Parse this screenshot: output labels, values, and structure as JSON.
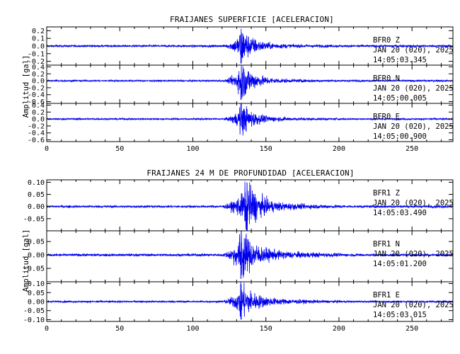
{
  "colors": {
    "trace": "#0000ee",
    "axes": "#000000",
    "background": "#ffffff"
  },
  "chart_data": [
    {
      "type": "line",
      "title": "FRAIJANES SUPERFICIE [ACELERACION]",
      "ylabel": "Amplitud [gal]",
      "xlim": [
        0,
        278
      ],
      "xticks": [
        0,
        50,
        100,
        150,
        200,
        250
      ],
      "xtick_labels": [
        "0",
        "50",
        "100",
        "150",
        "200",
        "250"
      ],
      "grid": false,
      "panels": [
        {
          "channel": "BFR0  Z",
          "date": "JAN 20 (020), 2025",
          "time": "14:05:03.345",
          "ylim": [
            -0.25,
            0.25
          ],
          "yticks": [
            -0.2,
            -0.1,
            0.0,
            0.1,
            0.2
          ],
          "ytick_labels": [
            "-0.2",
            "-0.1",
            "0.0",
            "0.1",
            "0.2"
          ],
          "envelope": {
            "noise": 0.012,
            "onset": 120,
            "peak_time": 133,
            "peak_amp": 0.23,
            "rise_end": 131,
            "decay_end": 165,
            "coda": 0.02
          }
        },
        {
          "channel": "BFR0  N",
          "date": "JAN 20 (020), 2025",
          "time": "14:05:00.005",
          "ylim": [
            -0.65,
            0.45
          ],
          "yticks": [
            -0.6,
            -0.4,
            -0.2,
            0.0,
            0.2,
            0.4
          ],
          "ytick_labels": [
            "-0.6",
            "-0.4",
            "-0.2",
            "0.0",
            "0.2",
            "0.4"
          ],
          "envelope": {
            "noise": 0.02,
            "onset": 120,
            "peak_time": 133,
            "peak_amp": 0.55,
            "rise_end": 131,
            "decay_end": 165,
            "coda": 0.04
          }
        },
        {
          "channel": "BFR0  E",
          "date": "JAN 20 (020), 2025",
          "time": "14:05:00.900",
          "ylim": [
            -0.65,
            0.45
          ],
          "yticks": [
            -0.6,
            -0.4,
            -0.2,
            0.0,
            0.2,
            0.4
          ],
          "ytick_labels": [
            "-0.6",
            "-0.4",
            "-0.2",
            "0.0",
            "0.2",
            "0.4"
          ],
          "envelope": {
            "noise": 0.02,
            "onset": 120,
            "peak_time": 133,
            "peak_amp": 0.45,
            "rise_end": 131,
            "decay_end": 165,
            "coda": 0.04
          }
        }
      ]
    },
    {
      "type": "line",
      "title": "FRAIJANES 24 M DE PROFUNDIDAD [ACELERACION]",
      "ylabel": "Amplitud [gal]",
      "xlim": [
        0,
        278
      ],
      "xticks": [
        0,
        50,
        100,
        150,
        200,
        250
      ],
      "xtick_labels": [
        "0",
        "50",
        "100",
        "150",
        "200",
        "250"
      ],
      "grid": false,
      "panels": [
        {
          "channel": "BFR1  Z",
          "date": "JAN 20 (020), 2025",
          "time": "14:05:03.490",
          "ylim": [
            -0.1,
            0.11
          ],
          "yticks": [
            -0.05,
            0.0,
            0.05,
            0.1
          ],
          "ytick_labels": [
            "-0.05",
            "0.00",
            "0.05",
            "0.10"
          ],
          "envelope": {
            "noise": 0.004,
            "onset": 118,
            "peak_time": 137,
            "peak_amp": 0.1,
            "rise_end": 134,
            "decay_end": 170,
            "coda": 0.01
          }
        },
        {
          "channel": "BFR1  N",
          "date": "JAN 20 (020), 2025",
          "time": "14:05:01.200",
          "ylim": [
            -0.1,
            0.09
          ],
          "yticks": [
            -0.05,
            0.0,
            0.05
          ],
          "ytick_labels": [
            "-0.05",
            "0.00",
            "0.05"
          ],
          "envelope": {
            "noise": 0.004,
            "onset": 118,
            "peak_time": 133,
            "peak_amp": 0.09,
            "rise_end": 131,
            "decay_end": 170,
            "coda": 0.01
          }
        },
        {
          "channel": "BFR1  E",
          "date": "JAN 20 (020), 2025",
          "time": "14:05:03.015",
          "ylim": [
            -0.11,
            0.11
          ],
          "yticks": [
            -0.1,
            -0.05,
            0.0,
            0.05,
            0.1
          ],
          "ytick_labels": [
            "-0.10",
            "-0.05",
            "0.00",
            "0.05",
            "0.10"
          ],
          "envelope": {
            "noise": 0.004,
            "onset": 118,
            "peak_time": 133,
            "peak_amp": 0.1,
            "rise_end": 131,
            "decay_end": 170,
            "coda": 0.01
          }
        }
      ]
    }
  ]
}
